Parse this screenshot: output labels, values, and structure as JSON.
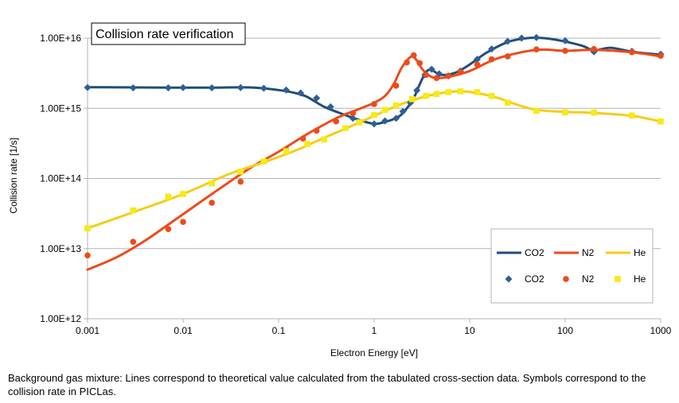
{
  "chart_data": {
    "type": "line",
    "title": "Collision rate verification",
    "xlabel": "Electron Energy [eV]",
    "ylabel": "Collision rate [1/s]",
    "xscale": "log",
    "yscale": "log",
    "xlim": [
      0.001,
      1000
    ],
    "ylim": [
      1000000000000.0,
      1e+16
    ],
    "x_ticks": [
      {
        "value": 0.001,
        "label": "0.001"
      },
      {
        "value": 0.01,
        "label": "0.01"
      },
      {
        "value": 0.1,
        "label": "0.1"
      },
      {
        "value": 1,
        "label": "1"
      },
      {
        "value": 10,
        "label": "10"
      },
      {
        "value": 100,
        "label": "100"
      },
      {
        "value": 1000,
        "label": "1000"
      }
    ],
    "y_ticks": [
      {
        "value": 1000000000000.0,
        "label": "1.00E+12"
      },
      {
        "value": 10000000000000.0,
        "label": "1.00E+13"
      },
      {
        "value": 100000000000000.0,
        "label": "1.00E+14"
      },
      {
        "value": 1000000000000000.0,
        "label": "1.00E+15"
      },
      {
        "value": 1e+16,
        "label": "1.00E+16"
      }
    ],
    "grid": "horizontal",
    "legend_position": "bottom-right",
    "legend_columns": 3,
    "series": [
      {
        "name": "CO2",
        "kind": "line",
        "color": "#1f4e79",
        "x": [
          0.001,
          0.005,
          0.01,
          0.02,
          0.04,
          0.06,
          0.1,
          0.15,
          0.2,
          0.3,
          0.5,
          0.7,
          1.0,
          1.3,
          1.6,
          1.9,
          2.2,
          2.6,
          3.0,
          3.5,
          4.0,
          5.0,
          7.0,
          10,
          15,
          25,
          40,
          60,
          90,
          150,
          200,
          300,
          500,
          1000
        ],
        "y": [
          2000000000000000.0,
          1980000000000000.0,
          1970000000000000.0,
          1970000000000000.0,
          1990000000000000.0,
          1960000000000000.0,
          1820000000000000.0,
          1650000000000000.0,
          1450000000000000.0,
          1050000000000000.0,
          800000000000000.0,
          680000000000000.0,
          600000000000000.0,
          640000000000000.0,
          700000000000000.0,
          800000000000000.0,
          1000000000000000.0,
          1400000000000000.0,
          2200000000000000.0,
          3300000000000000.0,
          3500000000000000.0,
          3000000000000000.0,
          3200000000000000.0,
          4200000000000000.0,
          6200000000000000.0,
          8800000000000000.0,
          1e+16,
          1e+16,
          9200000000000000.0,
          7800000000000000.0,
          6700000000000000.0,
          7300000000000000.0,
          6400000000000000.0,
          5800000000000000.0
        ]
      },
      {
        "name": "N2",
        "kind": "line",
        "color": "#ee4a1a",
        "x": [
          0.001,
          0.002,
          0.004,
          0.008,
          0.02,
          0.05,
          0.1,
          0.2,
          0.4,
          0.7,
          1.0,
          1.3,
          1.6,
          1.9,
          2.2,
          2.5,
          2.8,
          3.2,
          3.8,
          4.5,
          6,
          10,
          20,
          50,
          100,
          200,
          500,
          1000
        ],
        "y": [
          5000000000000.0,
          7500000000000.0,
          13000000000000.0,
          25000000000000.0,
          60000000000000.0,
          140000000000000.0,
          240000000000000.0,
          430000000000000.0,
          720000000000000.0,
          980000000000000.0,
          1200000000000000.0,
          1500000000000000.0,
          2200000000000000.0,
          3600000000000000.0,
          4800000000000000.0,
          5500000000000000.0,
          4800000000000000.0,
          3600000000000000.0,
          2900000000000000.0,
          2700000000000000.0,
          2800000000000000.0,
          3400000000000000.0,
          5200000000000000.0,
          6800000000000000.0,
          6600000000000000.0,
          6800000000000000.0,
          6300000000000000.0,
          5500000000000000.0
        ]
      },
      {
        "name": "He",
        "kind": "line",
        "color": "#f5cd16",
        "x": [
          0.001,
          0.003,
          0.01,
          0.03,
          0.07,
          0.15,
          0.3,
          0.6,
          1.0,
          1.5,
          2.5,
          4,
          6,
          8,
          12,
          20,
          30,
          50,
          100,
          200,
          500,
          1000
        ],
        "y": [
          19500000000000.0,
          33000000000000.0,
          60000000000000.0,
          115000000000000.0,
          170000000000000.0,
          250000000000000.0,
          380000000000000.0,
          570000000000000.0,
          780000000000000.0,
          1000000000000000.0,
          1300000000000000.0,
          1550000000000000.0,
          1700000000000000.0,
          1750000000000000.0,
          1650000000000000.0,
          1400000000000000.0,
          1150000000000000.0,
          950000000000000.0,
          890000000000000.0,
          860000000000000.0,
          780000000000000.0,
          650000000000000.0
        ]
      },
      {
        "name": "CO2",
        "kind": "markers",
        "marker": "diamond",
        "color": "#2e5f95",
        "x": [
          0.001,
          0.003,
          0.007,
          0.01,
          0.02,
          0.04,
          0.07,
          0.12,
          0.17,
          0.25,
          0.35,
          0.6,
          1.0,
          1.3,
          1.7,
          2.0,
          2.4,
          2.8,
          3.4,
          4.0,
          4.8,
          6.0,
          8.0,
          12,
          17,
          25,
          35,
          50,
          100,
          200,
          500,
          1000
        ],
        "y": [
          1980000000000000.0,
          1960000000000000.0,
          1960000000000000.0,
          1970000000000000.0,
          1960000000000000.0,
          1970000000000000.0,
          1930000000000000.0,
          1820000000000000.0,
          1650000000000000.0,
          1400000000000000.0,
          1050000000000000.0,
          720000000000000.0,
          600000000000000.0,
          660000000000000.0,
          720000000000000.0,
          900000000000000.0,
          1200000000000000.0,
          1800000000000000.0,
          3000000000000000.0,
          3600000000000000.0,
          3100000000000000.0,
          2900000000000000.0,
          3400000000000000.0,
          5000000000000000.0,
          7000000000000000.0,
          9000000000000000.0,
          1e+16,
          1.02e+16,
          9200000000000000.0,
          6400000000000000.0,
          6500000000000000.0,
          5900000000000000.0
        ]
      },
      {
        "name": "N2",
        "kind": "markers",
        "marker": "circle",
        "color": "#ee4a1a",
        "x": [
          0.001,
          0.003,
          0.007,
          0.01,
          0.02,
          0.04,
          0.12,
          0.18,
          0.25,
          0.4,
          0.6,
          1.0,
          1.7,
          2.2,
          2.6,
          3.0,
          3.5,
          4.5,
          6.0,
          8.0,
          12,
          17,
          25,
          50,
          100,
          200,
          500,
          1000
        ],
        "y": [
          8000000000000.0,
          12500000000000.0,
          19000000000000.0,
          24000000000000.0,
          45000000000000.0,
          90000000000000.0,
          260000000000000.0,
          370000000000000.0,
          480000000000000.0,
          650000000000000.0,
          850000000000000.0,
          1150000000000000.0,
          2100000000000000.0,
          4500000000000000.0,
          5700000000000000.0,
          4400000000000000.0,
          3000000000000000.0,
          2700000000000000.0,
          2900000000000000.0,
          3300000000000000.0,
          4200000000000000.0,
          5000000000000000.0,
          5500000000000000.0,
          6900000000000000.0,
          6600000000000000.0,
          7000000000000000.0,
          6300000000000000.0,
          5600000000000000.0
        ]
      },
      {
        "name": "He",
        "kind": "markers",
        "marker": "square",
        "color": "#f7ea17",
        "x": [
          0.001,
          0.003,
          0.007,
          0.01,
          0.02,
          0.04,
          0.07,
          0.12,
          0.2,
          0.3,
          0.5,
          0.7,
          1.0,
          1.3,
          1.7,
          2.5,
          3.5,
          4.5,
          6,
          8,
          12,
          17,
          25,
          50,
          100,
          200,
          500,
          1000
        ],
        "y": [
          19500000000000.0,
          35000000000000.0,
          55000000000000.0,
          60000000000000.0,
          85000000000000.0,
          125000000000000.0,
          175000000000000.0,
          245000000000000.0,
          310000000000000.0,
          360000000000000.0,
          520000000000000.0,
          630000000000000.0,
          800000000000000.0,
          950000000000000.0,
          1100000000000000.0,
          1350000000000000.0,
          1500000000000000.0,
          1600000000000000.0,
          1700000000000000.0,
          1750000000000000.0,
          1700000000000000.0,
          1500000000000000.0,
          1200000000000000.0,
          920000000000000.0,
          880000000000000.0,
          870000000000000.0,
          790000000000000.0,
          650000000000000.0
        ]
      }
    ]
  },
  "caption": "Background gas mixture: Lines correspond to theoretical value calculated from the tabulated cross-section data. Symbols correspond to the collision rate in PICLas."
}
